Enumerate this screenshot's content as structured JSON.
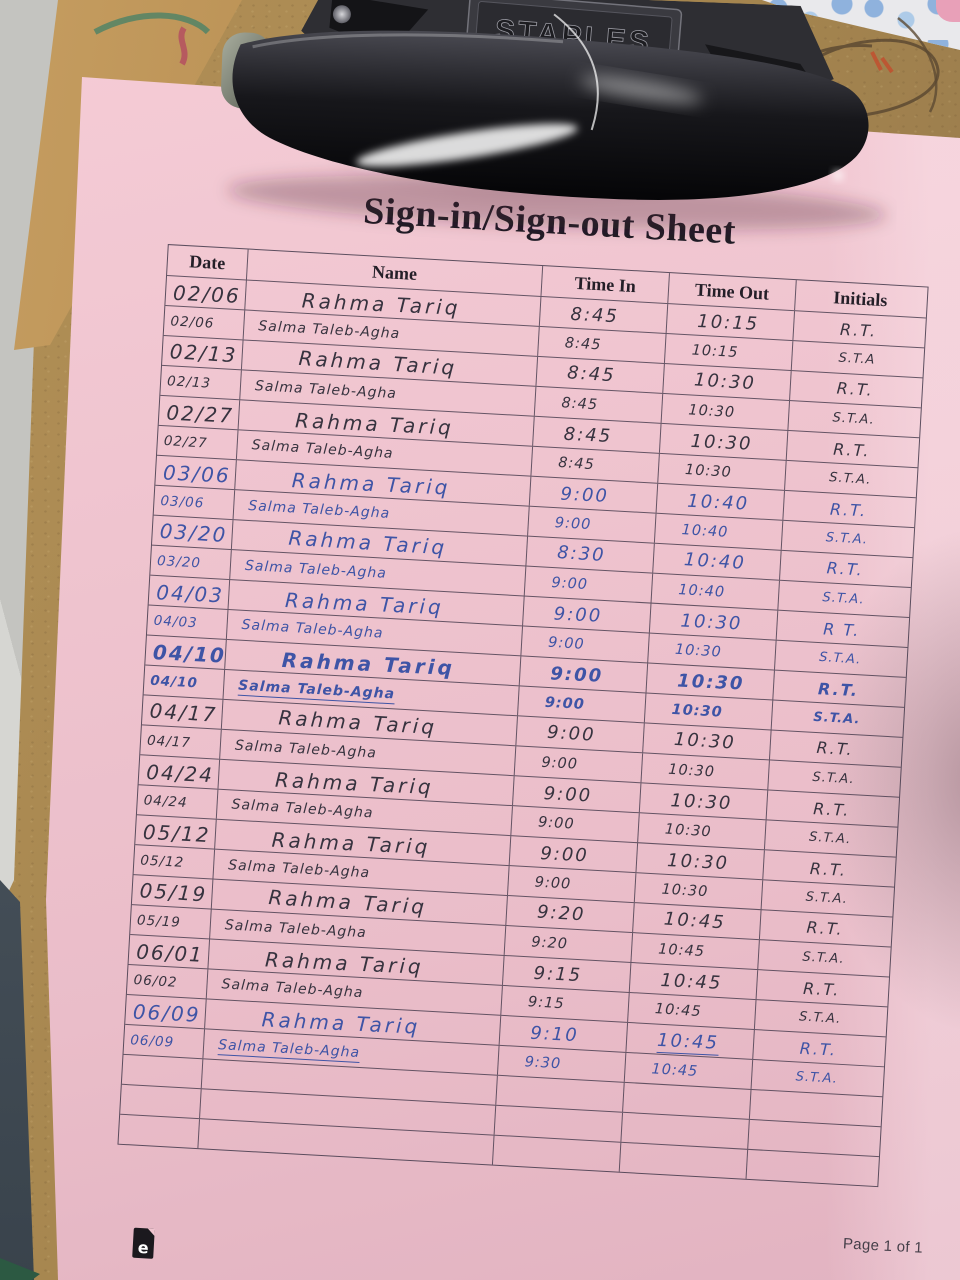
{
  "page": {
    "title": "Sign-in/Sign-out Sheet",
    "footer": {
      "page_label": "Page 1 of 1",
      "doc_icon_letter": "e"
    }
  },
  "clip": {
    "brand": "STAPLES"
  },
  "colors": {
    "paper_pink": "#efc4cf",
    "board_brown": "#a6864f",
    "black_ink": "#37333f",
    "blue_ink": "#3e54a6",
    "metal_dark": "#151518"
  },
  "table": {
    "headers": [
      "Date",
      "Name",
      "Time In",
      "Time Out",
      "Initials"
    ],
    "empty_row_count": 3,
    "rows": [
      {
        "date": "02/06",
        "name": "Rahma Tariq",
        "time_in": "8:45",
        "time_out": "10:15",
        "initials": "R.T.",
        "ink": "black",
        "hand": "large"
      },
      {
        "date": "02/06",
        "name": "Salma Taleb-Agha",
        "time_in": "8:45",
        "time_out": "10:15",
        "initials": "S.T.A",
        "ink": "black",
        "hand": "small"
      },
      {
        "date": "02/13",
        "name": "Rahma Tariq",
        "time_in": "8:45",
        "time_out": "10:30",
        "initials": "R.T.",
        "ink": "black",
        "hand": "large"
      },
      {
        "date": "02/13",
        "name": "Salma Taleb-Agha",
        "time_in": "8:45",
        "time_out": "10:30",
        "initials": "S.T.A.",
        "ink": "black",
        "hand": "small"
      },
      {
        "date": "02/27",
        "name": "Rahma Tariq",
        "time_in": "8:45",
        "time_out": "10:30",
        "initials": "R.T.",
        "ink": "black",
        "hand": "large"
      },
      {
        "date": "02/27",
        "name": "Salma Taleb-Agha",
        "time_in": "8:45",
        "time_out": "10:30",
        "initials": "S.T.A.",
        "ink": "black",
        "hand": "small"
      },
      {
        "date": "03/06",
        "name": "Rahma Tariq",
        "time_in": "9:00",
        "time_out": "10:40",
        "initials": "R.T.",
        "ink": "blue",
        "hand": "large"
      },
      {
        "date": "03/06",
        "name": "Salma Taleb-Agha",
        "time_in": "9:00",
        "time_out": "10:40",
        "initials": "S.T.A.",
        "ink": "blue",
        "hand": "small"
      },
      {
        "date": "03/20",
        "name": "Rahma Tariq",
        "time_in": "8:30",
        "time_out": "10:40",
        "initials": "R.T.",
        "ink": "blue",
        "hand": "large"
      },
      {
        "date": "03/20",
        "name": "Salma Taleb-Agha",
        "time_in": "9:00",
        "time_out": "10:40",
        "initials": "S.T.A.",
        "ink": "blue",
        "hand": "small"
      },
      {
        "date": "04/03",
        "name": "Rahma Tariq",
        "time_in": "9:00",
        "time_out": "10:30",
        "initials": "R T.",
        "ink": "blue",
        "hand": "large"
      },
      {
        "date": "04/03",
        "name": "Salma Taleb-Agha",
        "time_in": "9:00",
        "time_out": "10:30",
        "initials": "S.T.A.",
        "ink": "blue",
        "hand": "small"
      },
      {
        "date": "04/10",
        "name": "Rahma Tariq",
        "time_in": "9:00",
        "time_out": "10:30",
        "initials": "R.T.",
        "ink": "blue",
        "hand": "large",
        "bold": true
      },
      {
        "date": "04/10",
        "name": "Salma Taleb-Agha",
        "time_in": "9:00",
        "time_out": "10:30",
        "initials": "S.T.A.",
        "ink": "blue",
        "hand": "small",
        "bold": true,
        "underline_name": true
      },
      {
        "date": "04/17",
        "name": "Rahma Tariq",
        "time_in": "9:00",
        "time_out": "10:30",
        "initials": "R.T.",
        "ink": "black",
        "hand": "large"
      },
      {
        "date": "04/17",
        "name": "Salma Taleb-Agha",
        "time_in": "9:00",
        "time_out": "10:30",
        "initials": "S.T.A.",
        "ink": "black",
        "hand": "small"
      },
      {
        "date": "04/24",
        "name": "Rahma Tariq",
        "time_in": "9:00",
        "time_out": "10:30",
        "initials": "R.T.",
        "ink": "black",
        "hand": "large"
      },
      {
        "date": "04/24",
        "name": "Salma Taleb-Agha",
        "time_in": "9:00",
        "time_out": "10:30",
        "initials": "S.T.A.",
        "ink": "black",
        "hand": "small"
      },
      {
        "date": "05/12",
        "name": "Rahma Tariq",
        "time_in": "9:00",
        "time_out": "10:30",
        "initials": "R.T.",
        "ink": "black",
        "hand": "large"
      },
      {
        "date": "05/12",
        "name": "Salma Taleb-Agha",
        "time_in": "9:00",
        "time_out": "10:30",
        "initials": "S.T.A.",
        "ink": "black",
        "hand": "small"
      },
      {
        "date": "05/19",
        "name": "Rahma Tariq",
        "time_in": "9:20",
        "time_out": "10:45",
        "initials": "R.T.",
        "ink": "black",
        "hand": "large"
      },
      {
        "date": "05/19",
        "name": "Salma Taleb-Agha",
        "time_in": "9:20",
        "time_out": "10:45",
        "initials": "S.T.A.",
        "ink": "black",
        "hand": "small"
      },
      {
        "date": "06/01",
        "name": "Rahma Tariq",
        "time_in": "9:15",
        "time_out": "10:45",
        "initials": "R.T.",
        "ink": "black",
        "hand": "large"
      },
      {
        "date": "06/02",
        "name": "Salma Taleb-Agha",
        "time_in": "9:15",
        "time_out": "10:45",
        "initials": "S.T.A.",
        "ink": "black",
        "hand": "small"
      },
      {
        "date": "06/09",
        "name": "Rahma Tariq",
        "time_in": "9:10",
        "time_out": "10:45",
        "initials": "R.T.",
        "ink": "blue",
        "hand": "large",
        "underline_time_out": true
      },
      {
        "date": "06/09",
        "name": "Salma Taleb-Agha",
        "time_in": "9:30",
        "time_out": "10:45",
        "initials": "S.T.A.",
        "ink": "blue",
        "hand": "small",
        "underline_name": true
      }
    ]
  }
}
